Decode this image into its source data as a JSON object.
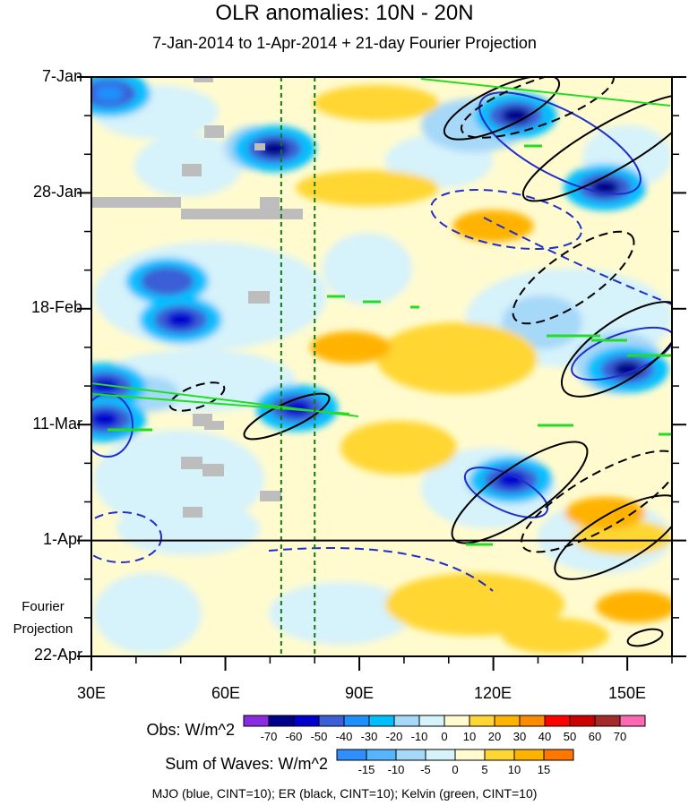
{
  "chart_data": {
    "type": "heatmap",
    "title": "OLR anomalies: 10N - 20N",
    "subtitle": "7-Jan-2014 to 1-Apr-2014 + 21-day Fourier Projection",
    "x_axis": {
      "ticks": [
        "30E",
        "60E",
        "90E",
        "120E",
        "150E"
      ],
      "range": [
        30,
        160
      ],
      "units": "degrees longitude"
    },
    "y_axis": {
      "ticks": [
        "7-Jan",
        "28-Jan",
        "18-Feb",
        "11-Mar",
        "1-Apr",
        "22-Apr"
      ],
      "range": [
        "7-Jan-2014",
        "22-Apr-2014"
      ],
      "reversed": true
    },
    "projection_line_date": "1-Apr",
    "projection_label": [
      "Fourier",
      "Projection"
    ],
    "reference_longitudes": [
      72.5,
      80
    ],
    "obs_colorbar": {
      "label": "Obs: W/m^2",
      "levels": [
        "-70",
        "-60",
        "-50",
        "-40",
        "-30",
        "-20",
        "-10",
        "0",
        "10",
        "20",
        "30",
        "40",
        "50",
        "60",
        "70"
      ],
      "colors": [
        "#8a2be2",
        "#00008b",
        "#0000cd",
        "#3b5fd6",
        "#1e90ff",
        "#00bfff",
        "#a6d8f8",
        "#d6f2fb",
        "#fffbcf",
        "#ffd633",
        "#ffb300",
        "#ff8c00",
        "#ff0000",
        "#cc0000",
        "#a52a2a",
        "#ff69b4"
      ]
    },
    "waves_colorbar": {
      "label": "Sum of Waves: W/m^2",
      "levels": [
        "-15",
        "-10",
        "-5",
        "0",
        "5",
        "10",
        "15"
      ],
      "colors": [
        "#2f8fff",
        "#55b5ff",
        "#a6d8f8",
        "#d6f2fb",
        "#fffbcf",
        "#ffd633",
        "#ffb300",
        "#ff7700"
      ]
    },
    "contour_legend": "MJO (blue, CINT=10); ER (black, CINT=10); Kelvin (green, CINT=10)",
    "wave_colors": {
      "mjo": "#1f2fcc",
      "er": "#000000",
      "kelvin": "#22dd22"
    },
    "strong_convection_anomalies": [
      {
        "lon": 34,
        "date": "10-Jan",
        "value": -40
      },
      {
        "lon": 71,
        "date": "20-Jan",
        "value": -70
      },
      {
        "lon": 47,
        "date": "13-Feb",
        "value": -50
      },
      {
        "lon": 50,
        "date": "20-Feb",
        "value": -60
      },
      {
        "lon": 33,
        "date": "4-Mar",
        "value": -60
      },
      {
        "lon": 33,
        "date": "10-Mar",
        "value": -60
      },
      {
        "lon": 76,
        "date": "8-Mar",
        "value": -60
      },
      {
        "lon": 125,
        "date": "14-Jan",
        "value": -70
      },
      {
        "lon": 145,
        "date": "27-Jan",
        "value": -70
      },
      {
        "lon": 150,
        "date": "1-Mar",
        "value": -70
      },
      {
        "lon": 124,
        "date": "21-Mar",
        "value": -60
      }
    ],
    "positive_anomaly_regions": [
      {
        "lon": 88,
        "date": "25-Feb",
        "value": 20
      },
      {
        "lon": 120,
        "date": "3-Feb",
        "value": 20
      },
      {
        "lon": 152,
        "date": "13-Apr",
        "value": 20
      },
      {
        "lon": 145,
        "date": "27-Mar",
        "value": 20
      }
    ]
  }
}
